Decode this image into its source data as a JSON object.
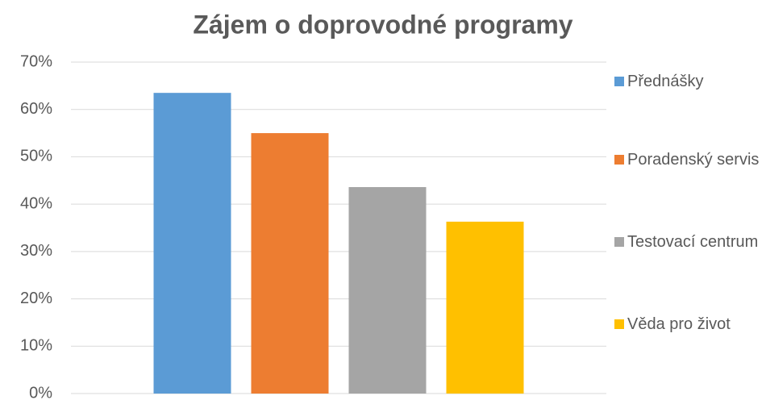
{
  "chart_data": {
    "type": "bar",
    "title": "Zájem o doprovodné programy",
    "categories": [
      null
    ],
    "series": [
      {
        "name": "Přednášky",
        "color": "#5b9bd5",
        "values": [
          63.5
        ]
      },
      {
        "name": "Poradenský servis",
        "color": "#ed7d31",
        "values": [
          55
        ]
      },
      {
        "name": "Testovací centrum",
        "color": "#a5a5a5",
        "values": [
          43.6
        ]
      },
      {
        "name": "Věda pro život",
        "color": "#ffc000",
        "values": [
          36.3
        ]
      }
    ],
    "ylim": [
      0,
      70
    ],
    "yticks": [
      {
        "value": 0,
        "label": "0%"
      },
      {
        "value": 10,
        "label": "10%"
      },
      {
        "value": 20,
        "label": "20%"
      },
      {
        "value": 30,
        "label": "30%"
      },
      {
        "value": 40,
        "label": "40%"
      },
      {
        "value": 50,
        "label": "50%"
      },
      {
        "value": 60,
        "label": "60%"
      },
      {
        "value": 70,
        "label": "70%"
      }
    ],
    "grid": true,
    "legend": "right"
  }
}
